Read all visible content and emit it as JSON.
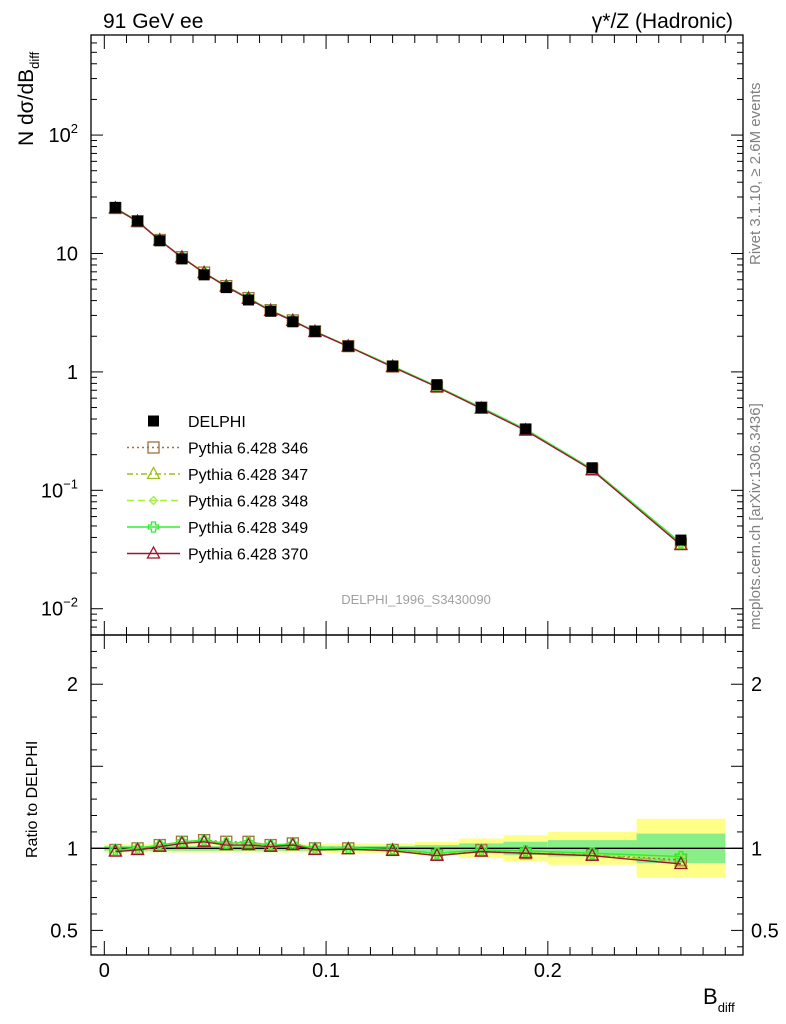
{
  "header": {
    "left_label": "91 GeV ee",
    "right_label": "γ*/Z (Hadronic)"
  },
  "side_text": {
    "rivet": "Rivet 3.1.10, ≥ 2.6M events",
    "mcplots": "mcplots.cern.ch [arXiv:1306.3436]"
  },
  "watermark": "DELPHI_1996_S3430090",
  "colors": {
    "data": "#000000",
    "p346": "#a0713a",
    "p347": "#9dbe1a",
    "p348": "#a6f03c",
    "p349": "#33ee33",
    "p370": "#9b1530",
    "band_stat": "#88ee88",
    "band_tot": "#ffff88"
  },
  "chart_data": [
    {
      "type": "line",
      "panel": "main",
      "ylabel_main": "N dσ/dB",
      "ylabel_sub": "diff",
      "yscale": "log",
      "ylim": [
        0.006,
        700
      ],
      "xlim": [
        -0.006,
        0.288
      ],
      "ytick_labels": [
        {
          "value": 0.01,
          "base": "10",
          "exp": "−2"
        },
        {
          "value": 0.1,
          "base": "10",
          "exp": "−1"
        },
        {
          "value": 1,
          "base": "1",
          "exp": ""
        },
        {
          "value": 10,
          "base": "10",
          "exp": ""
        },
        {
          "value": 100,
          "base": "10",
          "exp": "2"
        }
      ],
      "x": [
        0.005,
        0.015,
        0.025,
        0.035,
        0.045,
        0.055,
        0.065,
        0.075,
        0.085,
        0.095,
        0.11,
        0.13,
        0.15,
        0.17,
        0.19,
        0.22,
        0.26
      ],
      "series": [
        {
          "name": "DELPHI",
          "key": "data",
          "marker": "square",
          "values": [
            24.5,
            18.8,
            12.8,
            9.0,
            6.6,
            5.15,
            4.05,
            3.25,
            2.65,
            2.2,
            1.65,
            1.12,
            0.78,
            0.5,
            0.33,
            0.155,
            0.038
          ]
        },
        {
          "name": "Pythia 6.428 346",
          "key": "p346",
          "marker": "open-square",
          "dash": "2,3",
          "values": [
            24.2,
            18.7,
            13.0,
            9.3,
            6.9,
            5.3,
            4.2,
            3.32,
            2.72,
            2.2,
            1.65,
            1.11,
            0.75,
            0.5,
            0.325,
            0.15,
            0.0355
          ]
        },
        {
          "name": "Pythia 6.428 347",
          "key": "p347",
          "marker": "open-triangle",
          "dash": "6,3,2,3",
          "values": [
            24.1,
            18.6,
            12.9,
            9.25,
            6.85,
            5.28,
            4.18,
            3.3,
            2.7,
            2.19,
            1.64,
            1.11,
            0.75,
            0.49,
            0.322,
            0.149,
            0.035
          ]
        },
        {
          "name": "Pythia 6.428 348",
          "key": "p348",
          "marker": "open-diamond",
          "dash": "7,4",
          "values": [
            24.2,
            18.7,
            13.0,
            9.3,
            6.9,
            5.3,
            4.2,
            3.32,
            2.72,
            2.2,
            1.65,
            1.11,
            0.75,
            0.5,
            0.325,
            0.15,
            0.0358
          ]
        },
        {
          "name": "Pythia 6.428 349",
          "key": "p349",
          "marker": "open-cross",
          "dash": "",
          "values": [
            24.3,
            18.8,
            13.0,
            9.3,
            6.9,
            5.3,
            4.2,
            3.32,
            2.72,
            2.2,
            1.65,
            1.12,
            0.755,
            0.5,
            0.328,
            0.151,
            0.036
          ]
        },
        {
          "name": "Pythia 6.428 370",
          "key": "p370",
          "marker": "open-triangle",
          "dash": "",
          "values": [
            24.0,
            18.6,
            12.9,
            9.25,
            6.85,
            5.25,
            4.15,
            3.28,
            2.7,
            2.18,
            1.64,
            1.1,
            0.745,
            0.49,
            0.32,
            0.148,
            0.0345
          ]
        }
      ]
    },
    {
      "type": "line",
      "panel": "ratio",
      "ylabel": "Ratio to DELPHI",
      "ylim": [
        0.35,
        2.3
      ],
      "xlim": [
        -0.006,
        0.288
      ],
      "xlabel_main": "B",
      "xlabel_sub": "diff",
      "ytick_labels": [
        "0.5",
        "1",
        "2"
      ],
      "ytick_values": [
        0.5,
        1,
        2
      ],
      "xtick_labels": [
        "0",
        "0.1",
        "0.2"
      ],
      "xtick_values": [
        0,
        0.1,
        0.2
      ],
      "bands": {
        "edges": [
          0,
          0.01,
          0.02,
          0.03,
          0.04,
          0.05,
          0.06,
          0.07,
          0.08,
          0.09,
          0.1,
          0.12,
          0.14,
          0.16,
          0.18,
          0.2,
          0.24,
          0.28
        ],
        "stat": [
          0.015,
          0.015,
          0.015,
          0.015,
          0.015,
          0.015,
          0.015,
          0.015,
          0.015,
          0.015,
          0.015,
          0.015,
          0.02,
          0.03,
          0.04,
          0.05,
          0.09
        ],
        "total": [
          0.025,
          0.025,
          0.025,
          0.025,
          0.025,
          0.025,
          0.025,
          0.025,
          0.025,
          0.025,
          0.03,
          0.03,
          0.04,
          0.06,
          0.08,
          0.1,
          0.18
        ]
      },
      "x": [
        0.005,
        0.015,
        0.025,
        0.035,
        0.045,
        0.055,
        0.065,
        0.075,
        0.085,
        0.095,
        0.11,
        0.13,
        0.15,
        0.17,
        0.19,
        0.22,
        0.26
      ],
      "series": [
        {
          "name": "Pythia 6.428 346",
          "key": "p346",
          "marker": "open-square",
          "dash": "2,3",
          "values": [
            0.99,
            1.0,
            1.02,
            1.04,
            1.05,
            1.04,
            1.04,
            1.02,
            1.03,
            1.0,
            1.0,
            0.99,
            0.96,
            0.99,
            0.97,
            0.96,
            0.93
          ]
        },
        {
          "name": "Pythia 6.428 347",
          "key": "p347",
          "marker": "open-triangle",
          "dash": "6,3,2,3",
          "values": [
            0.985,
            0.99,
            1.01,
            1.03,
            1.04,
            1.03,
            1.03,
            1.01,
            1.02,
            0.995,
            0.995,
            0.99,
            0.96,
            0.98,
            0.975,
            0.96,
            0.92
          ]
        },
        {
          "name": "Pythia 6.428 348",
          "key": "p348",
          "marker": "open-diamond",
          "dash": "7,4",
          "values": [
            0.99,
            1.0,
            1.02,
            1.04,
            1.05,
            1.03,
            1.04,
            1.02,
            1.03,
            1.0,
            1.0,
            0.99,
            0.965,
            0.99,
            0.98,
            0.965,
            0.94
          ]
        },
        {
          "name": "Pythia 6.428 349",
          "key": "p349",
          "marker": "open-cross",
          "dash": "",
          "values": [
            0.99,
            1.0,
            1.02,
            1.04,
            1.05,
            1.03,
            1.035,
            1.02,
            1.025,
            1.0,
            1.0,
            0.995,
            0.97,
            0.99,
            0.985,
            0.97,
            0.95
          ]
        },
        {
          "name": "Pythia 6.428 370",
          "key": "p370",
          "marker": "open-triangle",
          "dash": "",
          "values": [
            0.98,
            0.99,
            1.01,
            1.03,
            1.04,
            1.02,
            1.02,
            1.01,
            1.02,
            0.99,
            0.995,
            0.985,
            0.955,
            0.98,
            0.97,
            0.955,
            0.905
          ]
        }
      ]
    }
  ]
}
